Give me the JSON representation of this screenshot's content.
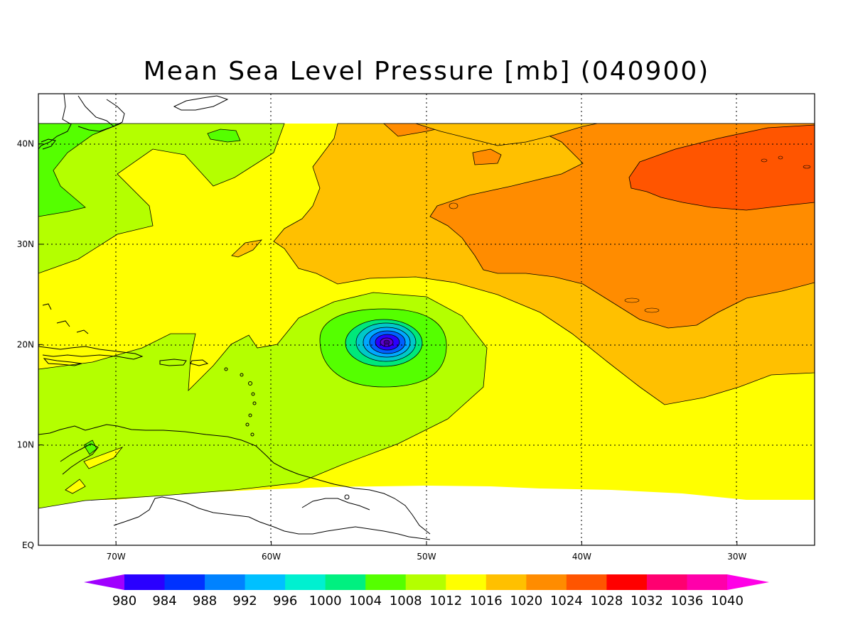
{
  "map": {
    "title": "Mean Sea Level Pressure [mb] (040900)",
    "lon_labels": [
      "70W",
      "60W",
      "50W",
      "40W",
      "30W"
    ],
    "lat_labels": [
      "40N",
      "30N",
      "20N",
      "10N",
      "EQ"
    ],
    "lon_values": [
      -70,
      -60,
      -50,
      -40,
      -30
    ],
    "lat_values": [
      40,
      30,
      20,
      10,
      0
    ],
    "extent": {
      "lon_min": -75,
      "lon_max": -25,
      "lat_min": 0,
      "lat_max": 45
    },
    "data_extent": {
      "lat_min": 4,
      "lat_max": 42
    },
    "grid": "dotted",
    "low_center": {
      "lon": -52.5,
      "lat": 20.2,
      "min_level": 980
    },
    "colors": {
      "l1008": "#b4ff00",
      "l1012": "#ffff00",
      "l1016": "#ffc000",
      "l1020": "#ff8c00",
      "l1024": "#ff5500",
      "l1004": "#55ff00",
      "l1000": "#00e87a",
      "l996": "#00c8c8",
      "l992": "#00a8ff",
      "l988": "#0060ff",
      "l984": "#2a00ff",
      "l980": "#6000d0"
    }
  },
  "colorbar": {
    "labels": [
      "980",
      "984",
      "988",
      "992",
      "996",
      "1000",
      "1004",
      "1008",
      "1012",
      "1016",
      "1020",
      "1024",
      "1028",
      "1032",
      "1036",
      "1040"
    ],
    "colors": [
      "#a000ff",
      "#2a00ff",
      "#0032ff",
      "#0082ff",
      "#00c0ff",
      "#00f0d0",
      "#00f080",
      "#55ff00",
      "#b4ff00",
      "#ffff00",
      "#ffc000",
      "#ff8c00",
      "#ff5500",
      "#ff0000",
      "#ff0070",
      "#ff00aa",
      "#ff00e6"
    ]
  }
}
